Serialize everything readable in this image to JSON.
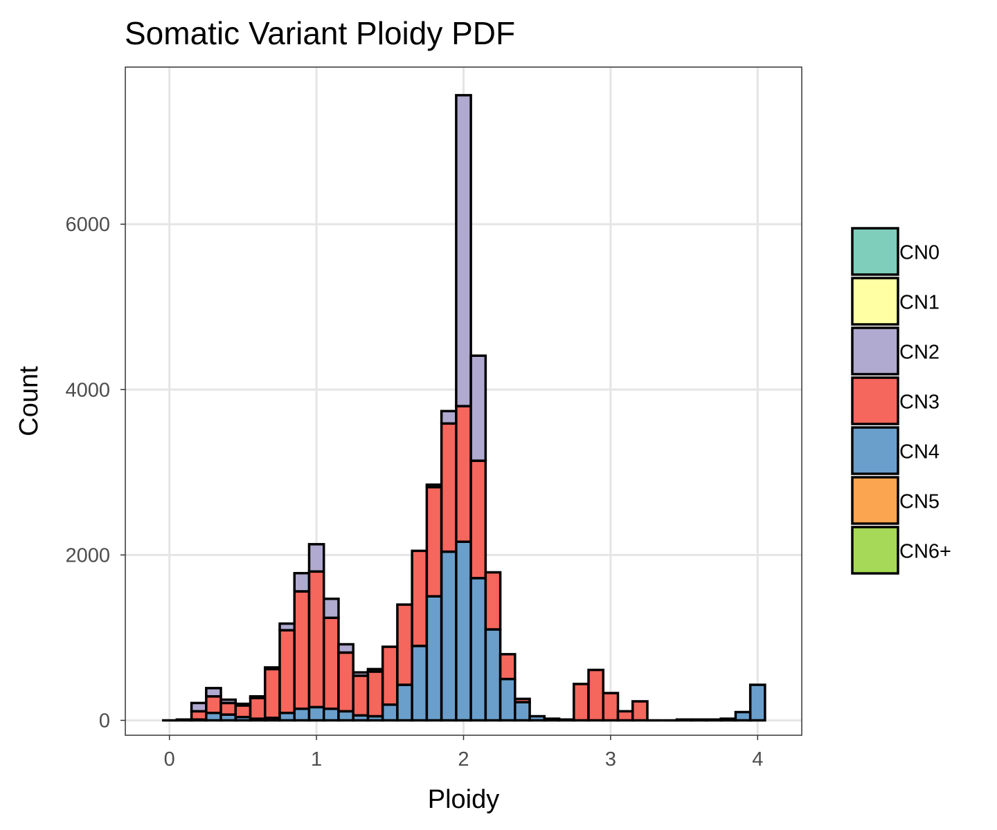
{
  "chart_data": {
    "type": "bar",
    "stacked": true,
    "title": "Somatic Variant Ploidy PDF",
    "xlabel": "Ploidy",
    "ylabel": "Count",
    "xlim": [
      -0.3,
      4.3
    ],
    "ylim": [
      -180,
      7900
    ],
    "x_ticks": [
      0,
      1,
      2,
      3,
      4
    ],
    "y_ticks": [
      0,
      2000,
      4000,
      6000
    ],
    "grid": true,
    "legend": "right",
    "bin_width": 0.1,
    "x": [
      0.0,
      0.1,
      0.2,
      0.3,
      0.4,
      0.5,
      0.6,
      0.7,
      0.8,
      0.9,
      1.0,
      1.1,
      1.2,
      1.3,
      1.4,
      1.5,
      1.6,
      1.7,
      1.8,
      1.9,
      2.0,
      2.1,
      2.2,
      2.3,
      2.4,
      2.5,
      2.6,
      2.7,
      2.8,
      2.9,
      3.0,
      3.1,
      3.2,
      3.3,
      3.4,
      3.5,
      3.6,
      3.7,
      3.8,
      3.9,
      4.0
    ],
    "series": [
      {
        "name": "CN0",
        "color": "#7fcdbb",
        "values": [
          0,
          0,
          0,
          0,
          0,
          0,
          0,
          0,
          0,
          0,
          0,
          0,
          0,
          0,
          0,
          0,
          0,
          0,
          0,
          0,
          0,
          0,
          0,
          0,
          0,
          0,
          0,
          0,
          0,
          0,
          0,
          0,
          0,
          0,
          0,
          0,
          0,
          0,
          0,
          0,
          0
        ]
      },
      {
        "name": "CN1",
        "color": "#ffffa3",
        "values": [
          0,
          0,
          0,
          0,
          0,
          0,
          0,
          0,
          0,
          0,
          0,
          0,
          0,
          0,
          0,
          0,
          0,
          0,
          0,
          0,
          0,
          0,
          0,
          0,
          0,
          0,
          0,
          0,
          0,
          0,
          0,
          0,
          0,
          0,
          0,
          0,
          0,
          0,
          0,
          0,
          0
        ]
      },
      {
        "name": "CN2",
        "color": "#b0aad0",
        "values": [
          0,
          0,
          100,
          100,
          40,
          20,
          20,
          20,
          80,
          220,
          330,
          230,
          100,
          40,
          30,
          0,
          0,
          0,
          30,
          150,
          3760,
          1270,
          0,
          0,
          0,
          0,
          0,
          0,
          0,
          0,
          0,
          0,
          0,
          0,
          0,
          0,
          0,
          0,
          0,
          0,
          0
        ]
      },
      {
        "name": "CN3",
        "color": "#f5665d",
        "values": [
          0,
          0,
          100,
          200,
          140,
          140,
          250,
          590,
          1000,
          1420,
          1640,
          1100,
          710,
          480,
          540,
          700,
          970,
          1150,
          1320,
          1550,
          1640,
          1420,
          690,
          300,
          40,
          0,
          0,
          0,
          440,
          610,
          330,
          110,
          230,
          0,
          0,
          0,
          0,
          0,
          0,
          0,
          0
        ]
      },
      {
        "name": "CN4",
        "color": "#6a9fcc",
        "values": [
          0,
          10,
          10,
          90,
          70,
          40,
          20,
          30,
          90,
          140,
          160,
          140,
          110,
          60,
          50,
          190,
          430,
          900,
          1500,
          2040,
          2160,
          1720,
          1100,
          500,
          220,
          50,
          20,
          10,
          0,
          0,
          0,
          0,
          0,
          0,
          0,
          10,
          10,
          10,
          20,
          100,
          430
        ]
      },
      {
        "name": "CN5",
        "color": "#fba551",
        "values": [
          0,
          0,
          0,
          0,
          0,
          0,
          0,
          0,
          0,
          0,
          0,
          0,
          0,
          0,
          0,
          0,
          0,
          0,
          0,
          0,
          0,
          0,
          0,
          0,
          0,
          0,
          0,
          0,
          0,
          0,
          0,
          0,
          0,
          0,
          0,
          0,
          0,
          0,
          0,
          0,
          0
        ]
      },
      {
        "name": "CN6+",
        "color": "#a6d957",
        "values": [
          0,
          0,
          0,
          0,
          0,
          0,
          0,
          0,
          0,
          0,
          0,
          0,
          0,
          0,
          0,
          0,
          0,
          0,
          0,
          0,
          0,
          0,
          0,
          0,
          0,
          0,
          0,
          0,
          0,
          0,
          0,
          0,
          0,
          0,
          0,
          0,
          0,
          0,
          0,
          0,
          0
        ]
      }
    ]
  }
}
